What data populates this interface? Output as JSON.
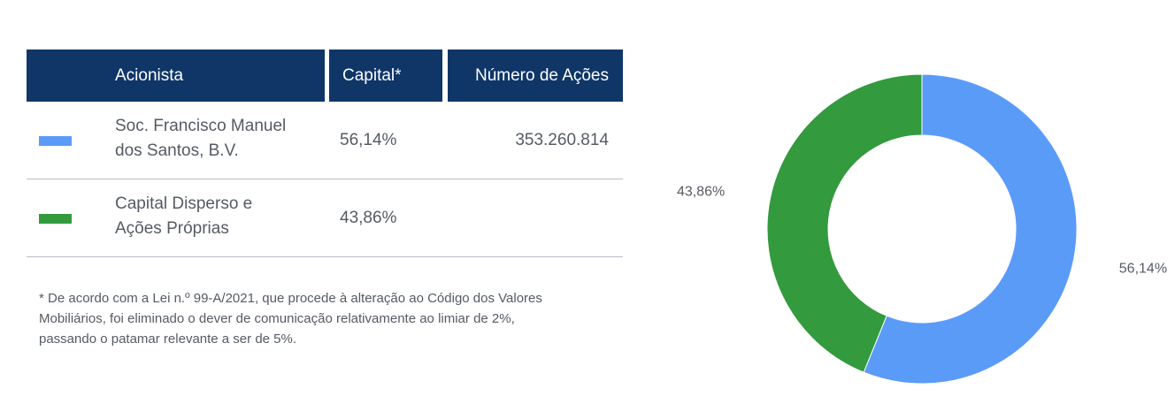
{
  "table": {
    "headers": {
      "shareholder": "Acionista",
      "capital": "Capital*",
      "shares": "Número de Ações"
    },
    "rows": [
      {
        "name_line1": "Soc. Francisco Manuel",
        "name_line2": "dos Santos, B.V.",
        "capital": "56,14%",
        "shares": "353.260.814",
        "color": "#5b9bf8"
      },
      {
        "name_line1": "Capital Disperso e",
        "name_line2": "Ações Próprias",
        "capital": "43,86%",
        "shares": "",
        "color": "#339a3d"
      }
    ]
  },
  "footnote": {
    "line1": "* De acordo com a Lei n.º 99-A/2021, que procede à alteração ao Código dos Valores",
    "line2": "Mobiliários, foi eliminado o dever de comunicação relativamente ao limiar de 2%,",
    "line3": "passando o patamar relevante a ser de 5%."
  },
  "chart_data": {
    "type": "pie",
    "donut": true,
    "slices": [
      {
        "label": "56,14%",
        "value": 56.14,
        "color": "#5b9bf8"
      },
      {
        "label": "43,86%",
        "value": 43.86,
        "color": "#339a3d"
      }
    ]
  }
}
